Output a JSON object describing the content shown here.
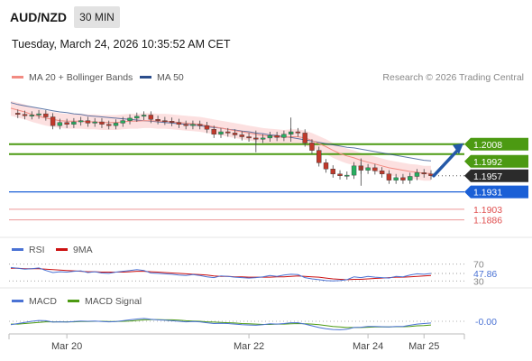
{
  "header": {
    "symbol": "AUD/NZD",
    "timeframe": "30 MIN",
    "datetime": "Tuesday, March 24, 2026 10:35:52 AM CET"
  },
  "legend": {
    "ma20_label": "MA 20 + Bollinger Bands",
    "ma20_color": "#f28b82",
    "ma50_label": "MA 50",
    "ma50_color": "#2b4d8c",
    "credit": "Research © 2026 Trading Central"
  },
  "colors": {
    "candle_up": "#27ae60",
    "candle_down": "#c0392b",
    "resistance": "#4c9a12",
    "pivot": "#1a5fd6",
    "support": "#e05050",
    "price_tag": "#2b2b2b",
    "arrow": "#2459a8",
    "bollinger_fill": "#fbd3d3",
    "rsi": "#4a72d4",
    "rsi_ma": "#cc1111",
    "macd": "#4a72d4",
    "macd_signal": "#4c9a12"
  },
  "chart_data": [
    {
      "type": "line",
      "title": "AUD/NZD 30 MIN",
      "x_ticks": [
        "Mar 20",
        "Mar 22",
        "Mar 24",
        "Mar 25"
      ],
      "y_range": [
        1.1865,
        1.2095
      ],
      "price_line": [
        1.2058,
        1.2056,
        1.2054,
        1.2055,
        1.2057,
        1.2052,
        1.2038,
        1.2043,
        1.204,
        1.2044,
        1.2046,
        1.2042,
        1.2044,
        1.204,
        1.2038,
        1.2042,
        1.2046,
        1.205,
        1.2053,
        1.2055,
        1.2048,
        1.2046,
        1.2045,
        1.2043,
        1.204,
        1.2038,
        1.204,
        1.2038,
        1.2032,
        1.2024,
        1.2028,
        1.2026,
        1.2023,
        1.202,
        1.2018,
        1.2016,
        1.2018,
        1.2022,
        1.2019,
        1.2024,
        1.2028,
        1.2026,
        1.201,
        1.1998,
        1.1978,
        1.1968,
        1.196,
        1.1957,
        1.1958,
        1.1973,
        1.1966,
        1.197,
        1.1965,
        1.196,
        1.195,
        1.1954,
        1.195,
        1.1956,
        1.1962,
        1.196,
        1.1957
      ],
      "ma20": [
        1.2066,
        1.2063,
        1.206,
        1.2056,
        1.2053,
        1.205,
        1.2048,
        1.2046,
        1.2045,
        1.2045,
        1.2045,
        1.2044,
        1.2044,
        1.2043,
        1.2043,
        1.2043,
        1.2044,
        1.2045,
        1.2045,
        1.2046,
        1.2046,
        1.2045,
        1.2045,
        1.2044,
        1.2043,
        1.2042,
        1.2041,
        1.204,
        1.2038,
        1.2036,
        1.2034,
        1.2032,
        1.203,
        1.2028,
        1.2026,
        1.2024,
        1.2022,
        1.2021,
        1.202,
        1.2019,
        1.202,
        1.202,
        1.2018,
        1.2014,
        1.2009,
        1.2004,
        1.1998,
        1.1993,
        1.1989,
        1.1986,
        1.1982,
        1.1979,
        1.1976,
        1.1973,
        1.197,
        1.1968,
        1.1966,
        1.1964,
        1.1963,
        1.1961,
        1.1961
      ],
      "ma50": [
        1.2075,
        1.2072,
        1.207,
        1.2068,
        1.2066,
        1.2064,
        1.2062,
        1.206,
        1.2059,
        1.2057,
        1.2056,
        1.2054,
        1.2053,
        1.2052,
        1.2051,
        1.205,
        1.2049,
        1.2048,
        1.2047,
        1.2046,
        1.2045,
        1.2044,
        1.2043,
        1.2042,
        1.2041,
        1.204,
        1.2039,
        1.2038,
        1.2036,
        1.2035,
        1.2034,
        1.2032,
        1.2031,
        1.2029,
        1.2028,
        1.2026,
        1.2025,
        1.2023,
        1.2022,
        1.202,
        1.2019,
        1.2017,
        1.2015,
        1.2013,
        1.2011,
        1.2009,
        1.2007,
        1.2005,
        1.2003,
        1.2002,
        1.2,
        1.1998,
        1.1996,
        1.1994,
        1.1992,
        1.199,
        1.1988,
        1.1986,
        1.1984,
        1.1982,
        1.1981
      ],
      "bollinger_width": 0.0012,
      "levels": [
        {
          "value": "1.2008",
          "kind": "resistance"
        },
        {
          "value": "1.1992",
          "kind": "resistance"
        },
        {
          "value": "1.1957",
          "kind": "price"
        },
        {
          "value": "1.1931",
          "kind": "pivot"
        },
        {
          "value": "1.1903",
          "kind": "support"
        },
        {
          "value": "1.1886",
          "kind": "support"
        }
      ]
    },
    {
      "type": "line",
      "title": "RSI",
      "legend": [
        "RSI",
        "9MA"
      ],
      "y_range": [
        20,
        80
      ],
      "reference_levels": [
        "70",
        "30"
      ],
      "current_value": "47.86",
      "rsi": [
        62,
        60,
        58,
        59,
        61,
        55,
        50,
        52,
        51,
        53,
        54,
        50,
        52,
        49,
        48,
        51,
        53,
        55,
        57,
        55,
        49,
        48,
        47,
        46,
        44,
        43,
        45,
        43,
        40,
        38,
        42,
        41,
        39,
        38,
        37,
        38,
        40,
        43,
        41,
        44,
        46,
        45,
        38,
        35,
        33,
        31,
        30,
        31,
        33,
        40,
        38,
        41,
        39,
        38,
        37,
        41,
        40,
        44,
        47,
        46,
        47.86
      ],
      "ma9": [
        60,
        60,
        59,
        59,
        59,
        58,
        57,
        56,
        55,
        54,
        53,
        52,
        52,
        51,
        51,
        51,
        51,
        52,
        53,
        53,
        52,
        51,
        50,
        49,
        48,
        47,
        46,
        45,
        44,
        42,
        41,
        41,
        40,
        40,
        39,
        39,
        39,
        39,
        40,
        40,
        41,
        42,
        41,
        40,
        39,
        37,
        35,
        34,
        33,
        34,
        34,
        35,
        36,
        37,
        38,
        39,
        39,
        40,
        41,
        42,
        43
      ]
    },
    {
      "type": "line",
      "title": "MACD",
      "legend": [
        "MACD",
        "MACD Signal"
      ],
      "y_range": [
        -0.0035,
        0.0035
      ],
      "current_value": "-0.00",
      "macd": [
        -0.0012,
        -0.0008,
        -0.0004,
        0.0,
        0.0003,
        0.0002,
        -0.0003,
        -0.0002,
        -0.0003,
        -0.0001,
        0.0001,
        0.0,
        0.0001,
        -0.0001,
        -0.0002,
        -0.0001,
        0.0002,
        0.0005,
        0.0008,
        0.001,
        0.0007,
        0.0005,
        0.0004,
        0.0002,
        0.0,
        -0.0002,
        -0.0001,
        -0.0002,
        -0.0005,
        -0.0008,
        -0.0007,
        -0.0008,
        -0.001,
        -0.0012,
        -0.0013,
        -0.0014,
        -0.0012,
        -0.0009,
        -0.001,
        -0.0008,
        -0.0005,
        -0.0005,
        -0.001,
        -0.0016,
        -0.0022,
        -0.0026,
        -0.0029,
        -0.003,
        -0.0028,
        -0.0022,
        -0.0021,
        -0.0018,
        -0.0018,
        -0.0019,
        -0.002,
        -0.0018,
        -0.0018,
        -0.0014,
        -0.001,
        -0.0008,
        -0.0006
      ],
      "signal": [
        -0.001,
        -0.001,
        -0.0008,
        -0.0006,
        -0.0004,
        -0.0002,
        -0.0002,
        -0.0002,
        -0.0002,
        -0.0002,
        -0.0001,
        -0.0001,
        0.0,
        0.0,
        -0.0001,
        -0.0001,
        0.0,
        0.0001,
        0.0003,
        0.0005,
        0.0006,
        0.0006,
        0.0005,
        0.0005,
        0.0004,
        0.0002,
        0.0001,
        0.0,
        -0.0002,
        -0.0003,
        -0.0004,
        -0.0005,
        -0.0006,
        -0.0008,
        -0.0009,
        -0.001,
        -0.0011,
        -0.0011,
        -0.001,
        -0.001,
        -0.0009,
        -0.0008,
        -0.0009,
        -0.001,
        -0.0012,
        -0.0015,
        -0.0018,
        -0.002,
        -0.0022,
        -0.0022,
        -0.0022,
        -0.0021,
        -0.002,
        -0.002,
        -0.002,
        -0.0019,
        -0.0019,
        -0.0018,
        -0.0016,
        -0.0015,
        -0.0013
      ]
    }
  ]
}
